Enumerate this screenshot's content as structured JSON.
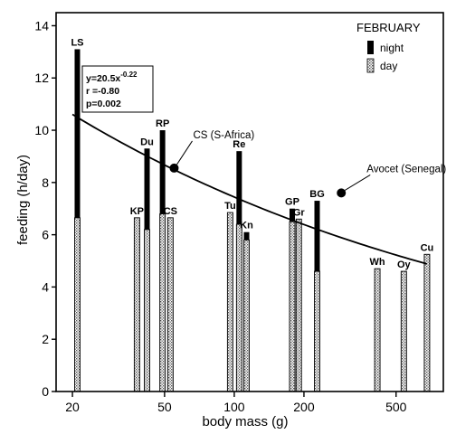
{
  "chart_data": {
    "type": "bar",
    "title": "",
    "xlabel": "body mass (g)",
    "ylabel": "feeding (h/day)",
    "x_scale": "log",
    "xlim": [
      17,
      800
    ],
    "ylim": [
      0,
      14.5
    ],
    "x_ticks": [
      20,
      50,
      100,
      200,
      500
    ],
    "x_tick_labels": [
      "20",
      "50",
      "100",
      "200",
      "500"
    ],
    "y_ticks": [
      0,
      2,
      4,
      6,
      8,
      10,
      12,
      14
    ],
    "y_tick_labels": [
      "0",
      "2",
      "4",
      "6",
      "8",
      "10",
      "12",
      "14"
    ],
    "grid": false,
    "legend": {
      "title": "FEBRUARY",
      "placement": "top-right",
      "entries": [
        {
          "label": "night",
          "pattern": "solid",
          "color": "#000000"
        },
        {
          "label": "day",
          "pattern": "stipple",
          "color": "#9a9a9a"
        }
      ]
    },
    "series": [
      {
        "name": "night",
        "pattern": "solid"
      },
      {
        "name": "day",
        "pattern": "stipple"
      }
    ],
    "bars": [
      {
        "label": "LS",
        "x": 21,
        "day": 6.65,
        "night": 6.45
      },
      {
        "label": "KP",
        "x": 38,
        "day": 6.65,
        "night": 0
      },
      {
        "label": "Du",
        "x": 42,
        "day": 6.2,
        "night": 3.1
      },
      {
        "label": "RP",
        "x": 49,
        "day": 6.8,
        "night": 3.2
      },
      {
        "label": "CS",
        "x": 53,
        "day": 6.65,
        "night": 0
      },
      {
        "label": "Tu",
        "x": 96,
        "day": 6.85,
        "night": 0
      },
      {
        "label": "Re",
        "x": 105,
        "day": 6.4,
        "night": 2.8
      },
      {
        "label": "Kn",
        "x": 113,
        "day": 5.8,
        "night": 0.3
      },
      {
        "label": "GP",
        "x": 178,
        "day": 6.5,
        "night": 0.5
      },
      {
        "label": "Gr",
        "x": 190,
        "day": 6.6,
        "night": 0
      },
      {
        "label": "BG",
        "x": 228,
        "day": 4.6,
        "night": 2.7
      },
      {
        "label": "Wh",
        "x": 415,
        "day": 4.7,
        "night": 0
      },
      {
        "label": "Oy",
        "x": 540,
        "day": 4.6,
        "night": 0
      },
      {
        "label": "Cu",
        "x": 680,
        "day": 5.25,
        "night": 0
      }
    ],
    "fit": {
      "a": 20.5,
      "b": -0.22,
      "equation_base": "y=20.5x",
      "equation_exponent": "-0.22",
      "r_text": "r =-0.80",
      "p_text": "p=0.002",
      "x_range": [
        20,
        680
      ]
    },
    "points": [
      {
        "label": "CS (S-Africa)",
        "x": 55,
        "y": 8.55
      },
      {
        "label": "Avocet (Senegal)",
        "x": 290,
        "y": 7.6
      }
    ]
  }
}
